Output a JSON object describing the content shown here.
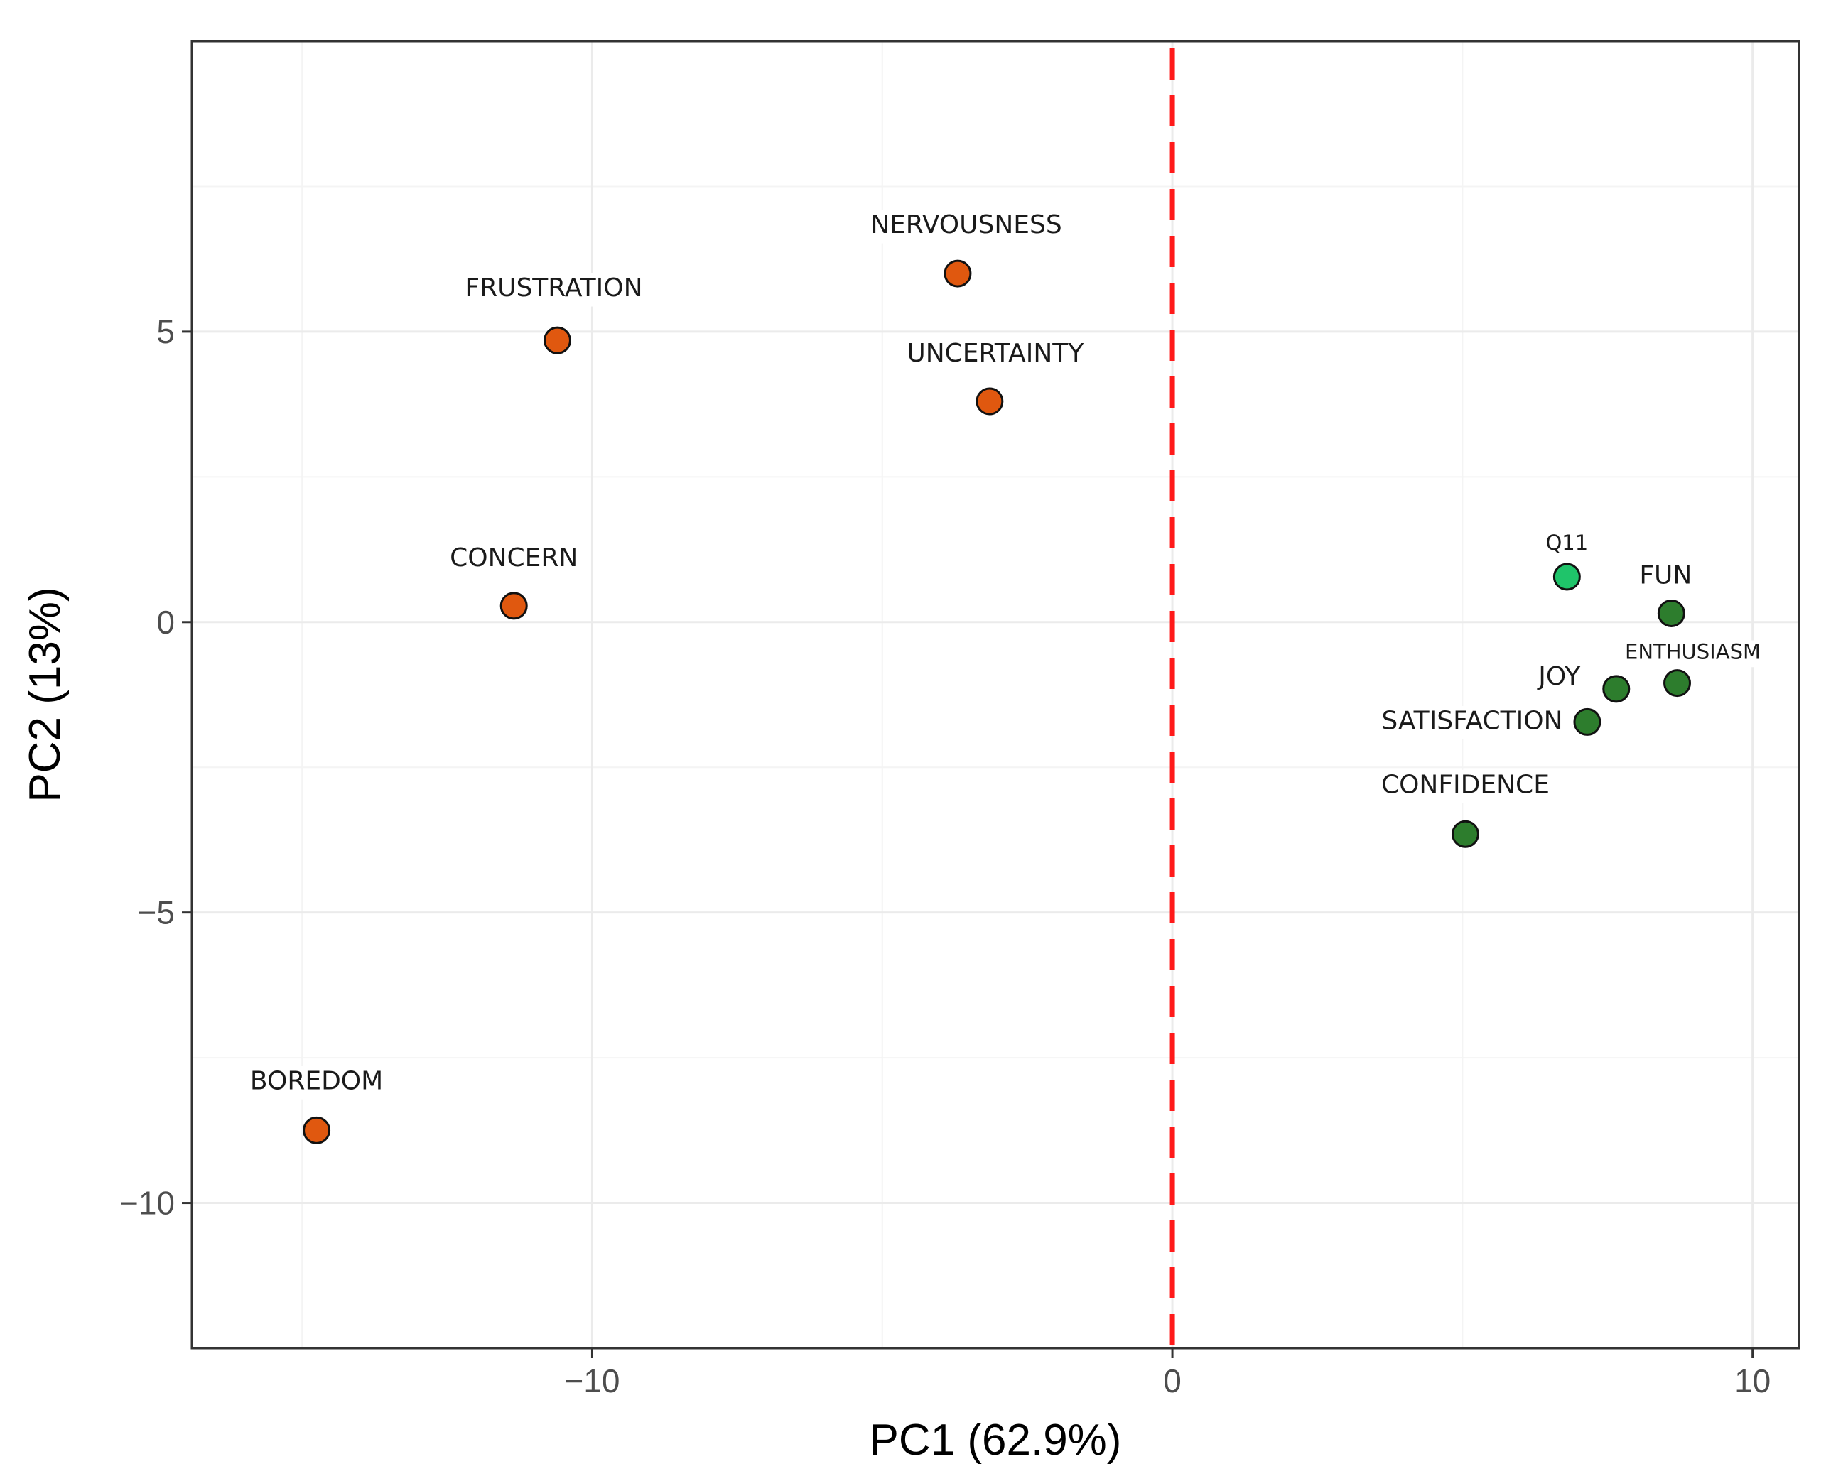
{
  "chart_data": {
    "type": "scatter",
    "xlabel": "PC1 (62.9%)",
    "ylabel": "PC2 (13%)",
    "xlim": [
      -16.9,
      10.8
    ],
    "ylim": [
      -12.5,
      10.0
    ],
    "x_ticks": [
      -10,
      0,
      10
    ],
    "y_ticks": [
      -10,
      -5,
      0,
      5
    ],
    "x_tick_labels": [
      "−10",
      "0",
      "10"
    ],
    "y_tick_labels": [
      "−10",
      "−5",
      "0",
      "5"
    ],
    "grid": true,
    "reference_line": {
      "axis": "x",
      "value": 0,
      "style": "dashed",
      "color": "#ff1a1a"
    },
    "colors": {
      "negative": "#e0580f",
      "positive": "#2d7d2d",
      "highlight": "#1fc46a"
    },
    "points": [
      {
        "label": "FRUSTRATION",
        "x": -10.6,
        "y": 4.85,
        "group": "negative"
      },
      {
        "label": "NERVOUSNESS",
        "x": -3.7,
        "y": 6.0,
        "group": "negative"
      },
      {
        "label": "UNCERTAINTY",
        "x": -3.15,
        "y": 3.8,
        "group": "negative"
      },
      {
        "label": "CONCERN",
        "x": -11.35,
        "y": 0.28,
        "group": "negative"
      },
      {
        "label": "BOREDOM",
        "x": -14.75,
        "y": -8.75,
        "group": "negative"
      },
      {
        "label": "Q11",
        "x": 6.8,
        "y": 0.78,
        "group": "highlight"
      },
      {
        "label": "FUN",
        "x": 8.6,
        "y": 0.15,
        "group": "positive"
      },
      {
        "label": "ENTHUSIASM",
        "x": 8.7,
        "y": -1.05,
        "group": "positive"
      },
      {
        "label": "JOY",
        "x": 7.65,
        "y": -1.15,
        "group": "positive"
      },
      {
        "label": "SATISFACTION",
        "x": 7.15,
        "y": -1.72,
        "group": "positive"
      },
      {
        "label": "CONFIDENCE",
        "x": 5.05,
        "y": -3.65,
        "group": "positive"
      }
    ]
  }
}
